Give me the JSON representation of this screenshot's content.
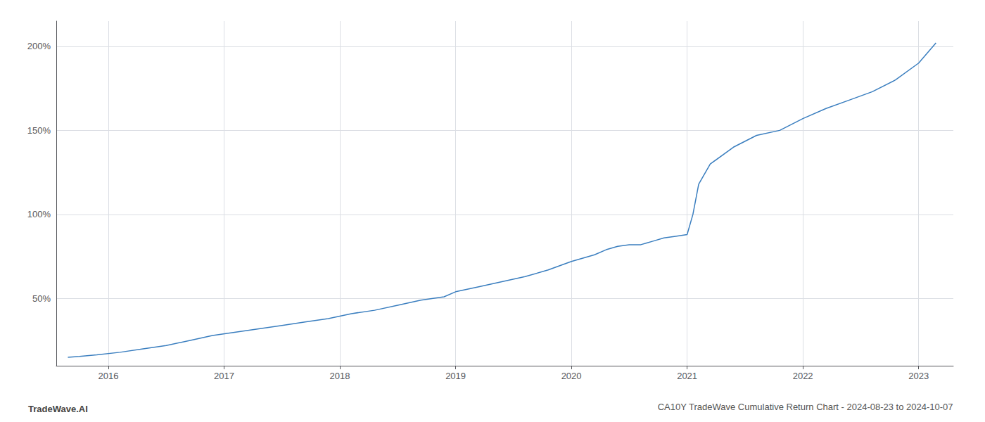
{
  "chart_data": {
    "type": "line",
    "title": "CA10Y TradeWave Cumulative Return Chart - 2024-08-23 to 2024-10-07",
    "annotations": [
      "TradeWave.AI"
    ],
    "color": "#3a7ebf",
    "grid": true,
    "x": [
      2015.65,
      2015.75,
      2015.9,
      2016.1,
      2016.3,
      2016.5,
      2016.7,
      2016.9,
      2017.1,
      2017.3,
      2017.5,
      2017.7,
      2017.9,
      2018.1,
      2018.3,
      2018.5,
      2018.7,
      2018.9,
      2019.0,
      2019.2,
      2019.4,
      2019.6,
      2019.8,
      2020.0,
      2020.1,
      2020.2,
      2020.3,
      2020.4,
      2020.5,
      2020.6,
      2020.65,
      2020.7,
      2020.8,
      2020.9,
      2021.0,
      2021.05,
      2021.1,
      2021.2,
      2021.4,
      2021.6,
      2021.8,
      2022.0,
      2022.2,
      2022.4,
      2022.6,
      2022.8,
      2023.0,
      2023.15
    ],
    "values": [
      15,
      15.5,
      16.5,
      18,
      20,
      22,
      25,
      28,
      30,
      32,
      34,
      36,
      38,
      41,
      43,
      46,
      49,
      51,
      54,
      57,
      60,
      63,
      67,
      72,
      74,
      76,
      79,
      81,
      82,
      82,
      83,
      84,
      86,
      87,
      88,
      100,
      118,
      130,
      140,
      147,
      150,
      157,
      163,
      168,
      173,
      180,
      190,
      202
    ],
    "xlim": [
      2015.55,
      2023.3
    ],
    "ylim": [
      10,
      215
    ],
    "xticks": [
      2016,
      2017,
      2018,
      2019,
      2020,
      2021,
      2022,
      2023
    ],
    "yticks": [
      {
        "value": 50,
        "label": "50%"
      },
      {
        "value": 100,
        "label": "100%"
      },
      {
        "value": 150,
        "label": "150%"
      },
      {
        "value": 200,
        "label": "200%"
      }
    ]
  }
}
